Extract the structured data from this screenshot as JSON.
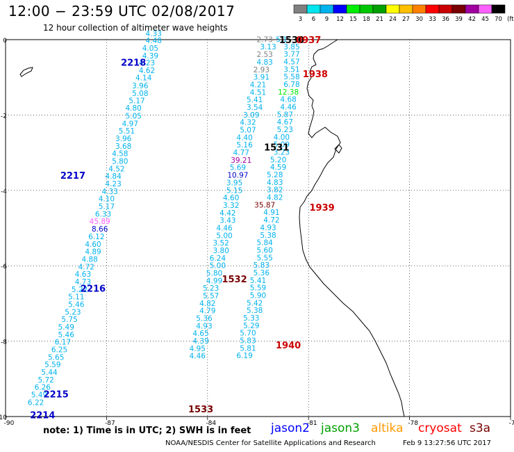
{
  "header": {
    "title": "12:00 − 23:59 UTC 02/08/2017",
    "subtitle": "12 hour collection of altimeter wave heights"
  },
  "colorbar": {
    "labels": [
      "3",
      "6",
      "9",
      "12",
      "15",
      "18",
      "21",
      "24",
      "27",
      "30",
      "33",
      "36",
      "39",
      "42",
      "45",
      "70",
      "(ft)"
    ],
    "colors": [
      "#808080",
      "#00e5ee",
      "#00b2ee",
      "#0000ff",
      "#00ee00",
      "#00c800",
      "#00a000",
      "#ffff00",
      "#ffc000",
      "#ff8000",
      "#ff0000",
      "#c80000",
      "#780000",
      "#a000a0",
      "#ff60ff",
      "#000000"
    ]
  },
  "axes": {
    "x_ticks": [
      "-90",
      "-87",
      "-84",
      "-81",
      "-78",
      "-75"
    ],
    "y_ticks": [
      "0",
      "-2",
      "-4",
      "-6",
      "-8",
      "-10"
    ]
  },
  "passes": [
    {
      "time": "2218",
      "lon": -86.2,
      "lat": -0.6,
      "color": "#0000c8"
    },
    {
      "time": "2217",
      "lon": -88.0,
      "lat": -3.6,
      "color": "#0000c8"
    },
    {
      "time": "2216",
      "lon": -87.4,
      "lat": -6.6,
      "color": "#0000c8"
    },
    {
      "time": "2215",
      "lon": -88.5,
      "lat": -9.4,
      "color": "#0000c8"
    },
    {
      "time": "2214",
      "lon": -88.9,
      "lat": -9.95,
      "color": "#0000c8"
    },
    {
      "time": "1530",
      "lon": -81.5,
      "lat": 0.0,
      "color": "#000000"
    },
    {
      "time": "0937",
      "lon": -81.0,
      "lat": 0.0,
      "color": "#cc0000"
    },
    {
      "time": "1938",
      "lon": -80.8,
      "lat": -0.9,
      "color": "#cc0000"
    },
    {
      "time": "1531",
      "lon": -81.95,
      "lat": -2.85,
      "color": "#000000"
    },
    {
      "time": "1939",
      "lon": -80.6,
      "lat": -4.45,
      "color": "#cc0000"
    },
    {
      "time": "1532",
      "lon": -83.2,
      "lat": -6.35,
      "color": "#780000"
    },
    {
      "time": "1940",
      "lon": -81.6,
      "lat": -8.1,
      "color": "#cc0000"
    },
    {
      "time": "1533",
      "lon": -84.2,
      "lat": -9.8,
      "color": "#780000"
    }
  ],
  "tracks": [
    {
      "color": "#00b2ee",
      "values": [
        {
          "lon": -85.6,
          "lat": 0.17,
          "v": "4.33"
        },
        {
          "lon": -85.6,
          "lat": -0.02,
          "v": "4.48"
        },
        {
          "lon": -85.7,
          "lat": -0.22,
          "v": "4.05"
        },
        {
          "lon": -85.7,
          "lat": -0.42,
          "v": "4.39"
        },
        {
          "lon": -85.8,
          "lat": -0.61,
          "v": "4.23"
        },
        {
          "lon": -85.8,
          "lat": -0.81,
          "v": "4.62"
        },
        {
          "lon": -85.9,
          "lat": -1.01,
          "v": "4.14"
        },
        {
          "lon": -86.0,
          "lat": -1.22,
          "v": "3.96"
        },
        {
          "lon": -86.0,
          "lat": -1.42,
          "v": "5.08"
        },
        {
          "lon": -86.1,
          "lat": -1.61,
          "v": "5.17"
        },
        {
          "lon": -86.2,
          "lat": -1.81,
          "v": "4.80"
        },
        {
          "lon": -86.2,
          "lat": -2.02,
          "v": "5.05"
        },
        {
          "lon": -86.3,
          "lat": -2.22,
          "v": "4.97"
        },
        {
          "lon": -86.4,
          "lat": -2.42,
          "v": "5.51"
        },
        {
          "lon": -86.5,
          "lat": -2.62,
          "v": "3.96"
        },
        {
          "lon": -86.5,
          "lat": -2.82,
          "v": "3.68"
        },
        {
          "lon": -86.6,
          "lat": -3.02,
          "v": "4.58"
        },
        {
          "lon": -86.6,
          "lat": -3.22,
          "v": "5.80"
        },
        {
          "lon": -86.7,
          "lat": -3.42,
          "v": "4.52"
        },
        {
          "lon": -86.8,
          "lat": -3.62,
          "v": "4.84"
        },
        {
          "lon": -86.8,
          "lat": -3.82,
          "v": "4.23"
        },
        {
          "lon": -86.9,
          "lat": -4.02,
          "v": "4.33"
        },
        {
          "lon": -87.0,
          "lat": -4.22,
          "v": "4.10"
        },
        {
          "lon": -87.0,
          "lat": -4.42,
          "v": "5.17"
        },
        {
          "lon": -87.1,
          "lat": -4.62,
          "v": "6.33"
        },
        {
          "lon": -87.2,
          "lat": -4.82,
          "v": "45.89",
          "c": "#ff60ff"
        },
        {
          "lon": -87.2,
          "lat": -5.02,
          "v": "8.66",
          "c": "#0000c8"
        },
        {
          "lon": -87.3,
          "lat": -5.22,
          "v": "6.12"
        },
        {
          "lon": -87.4,
          "lat": -5.42,
          "v": "4.60"
        },
        {
          "lon": -87.4,
          "lat": -5.62,
          "v": "4.89"
        },
        {
          "lon": -87.5,
          "lat": -5.82,
          "v": "4.88"
        },
        {
          "lon": -87.6,
          "lat": -6.02,
          "v": "4.72"
        },
        {
          "lon": -87.7,
          "lat": -6.22,
          "v": "4.63"
        },
        {
          "lon": -87.7,
          "lat": -6.42,
          "v": "4.73"
        },
        {
          "lon": -87.8,
          "lat": -6.62,
          "v": "5.22"
        },
        {
          "lon": -87.9,
          "lat": -6.82,
          "v": "5.11"
        },
        {
          "lon": -87.9,
          "lat": -7.02,
          "v": "5.46"
        },
        {
          "lon": -88.0,
          "lat": -7.22,
          "v": "5.23"
        },
        {
          "lon": -88.1,
          "lat": -7.42,
          "v": "5.75"
        },
        {
          "lon": -88.2,
          "lat": -7.62,
          "v": "5.49"
        },
        {
          "lon": -88.2,
          "lat": -7.82,
          "v": "5.46"
        },
        {
          "lon": -88.3,
          "lat": -8.02,
          "v": "6.17"
        },
        {
          "lon": -88.4,
          "lat": -8.22,
          "v": "6.25"
        },
        {
          "lon": -88.5,
          "lat": -8.42,
          "v": "5.65"
        },
        {
          "lon": -88.6,
          "lat": -8.62,
          "v": "5.59"
        },
        {
          "lon": -88.7,
          "lat": -8.82,
          "v": "5.44"
        },
        {
          "lon": -88.8,
          "lat": -9.02,
          "v": "5.72"
        },
        {
          "lon": -88.9,
          "lat": -9.22,
          "v": "6.26"
        },
        {
          "lon": -89.0,
          "lat": -9.42,
          "v": "5.49"
        },
        {
          "lon": -89.1,
          "lat": -9.62,
          "v": "6.22"
        }
      ]
    },
    {
      "color": "#00b2ee",
      "values": [
        {
          "lon": -82.3,
          "lat": 0.01,
          "v": "2.73",
          "c": "#808080"
        },
        {
          "lon": -82.2,
          "lat": -0.18,
          "v": "3.13"
        },
        {
          "lon": -82.3,
          "lat": -0.39,
          "v": "2.53",
          "c": "#808080"
        },
        {
          "lon": -82.3,
          "lat": -0.59,
          "v": "4.83"
        },
        {
          "lon": -82.4,
          "lat": -0.79,
          "v": "2.93",
          "c": "#808080"
        },
        {
          "lon": -82.4,
          "lat": -0.99,
          "v": "3.91"
        },
        {
          "lon": -82.5,
          "lat": -1.19,
          "v": "4.21"
        },
        {
          "lon": -82.5,
          "lat": -1.39,
          "v": "4.51"
        },
        {
          "lon": -82.6,
          "lat": -1.59,
          "v": "5.41"
        },
        {
          "lon": -82.6,
          "lat": -1.79,
          "v": "3.54"
        },
        {
          "lon": -82.7,
          "lat": -1.99,
          "v": "3.09"
        },
        {
          "lon": -82.8,
          "lat": -2.19,
          "v": "4.32"
        },
        {
          "lon": -82.8,
          "lat": -2.39,
          "v": "5.07"
        },
        {
          "lon": -82.9,
          "lat": -2.59,
          "v": "4.40"
        },
        {
          "lon": -82.9,
          "lat": -2.79,
          "v": "5.16"
        },
        {
          "lon": -83.0,
          "lat": -2.99,
          "v": "4.77"
        },
        {
          "lon": -83.0,
          "lat": -3.19,
          "v": "39.21",
          "c": "#a000a0"
        },
        {
          "lon": -83.1,
          "lat": -3.39,
          "v": "5.69"
        },
        {
          "lon": -83.1,
          "lat": -3.59,
          "v": "10.97",
          "c": "#0000c8"
        },
        {
          "lon": -83.2,
          "lat": -3.79,
          "v": "3.95"
        },
        {
          "lon": -83.2,
          "lat": -3.99,
          "v": "5.15"
        },
        {
          "lon": -83.3,
          "lat": -4.19,
          "v": "4.60"
        },
        {
          "lon": -83.3,
          "lat": -4.39,
          "v": "3.32"
        },
        {
          "lon": -83.4,
          "lat": -4.59,
          "v": "4.42"
        },
        {
          "lon": -83.4,
          "lat": -4.79,
          "v": "3.43"
        },
        {
          "lon": -83.5,
          "lat": -4.99,
          "v": "4.46"
        },
        {
          "lon": -83.5,
          "lat": -5.19,
          "v": "5.00"
        },
        {
          "lon": -83.6,
          "lat": -5.39,
          "v": "3.52"
        },
        {
          "lon": -83.6,
          "lat": -5.59,
          "v": "3.80"
        },
        {
          "lon": -83.7,
          "lat": -5.79,
          "v": "6.24"
        },
        {
          "lon": -83.7,
          "lat": -5.99,
          "v": "5.00"
        },
        {
          "lon": -83.8,
          "lat": -6.19,
          "v": "5.80"
        },
        {
          "lon": -83.8,
          "lat": -6.39,
          "v": "4.99"
        },
        {
          "lon": -83.9,
          "lat": -6.59,
          "v": "5.23"
        },
        {
          "lon": -83.9,
          "lat": -6.79,
          "v": "5.57"
        },
        {
          "lon": -84.0,
          "lat": -6.99,
          "v": "4.82"
        },
        {
          "lon": -84.0,
          "lat": -7.19,
          "v": "4.79"
        },
        {
          "lon": -84.1,
          "lat": -7.39,
          "v": "5.36"
        },
        {
          "lon": -84.1,
          "lat": -7.59,
          "v": "4.93"
        },
        {
          "lon": -84.2,
          "lat": -7.79,
          "v": "4.65"
        },
        {
          "lon": -84.2,
          "lat": -7.99,
          "v": "4.39"
        },
        {
          "lon": -84.3,
          "lat": -8.19,
          "v": "4.95"
        },
        {
          "lon": -84.3,
          "lat": -8.39,
          "v": "4.46"
        }
      ]
    },
    {
      "color": "#00b2ee",
      "values": [
        {
          "lon": -81.8,
          "lat": 0.01,
          "v": "5.1"
        },
        {
          "lon": -81.5,
          "lat": -0.18,
          "v": "3.85"
        },
        {
          "lon": -81.5,
          "lat": -0.38,
          "v": "3.77"
        },
        {
          "lon": -81.5,
          "lat": -0.58,
          "v": "4.57"
        },
        {
          "lon": -81.5,
          "lat": -0.78,
          "v": "3.51"
        },
        {
          "lon": -81.5,
          "lat": -0.98,
          "v": "5.58"
        },
        {
          "lon": -81.5,
          "lat": -1.18,
          "v": "6.78"
        },
        {
          "lon": -81.6,
          "lat": -1.38,
          "v": "12.38",
          "c": "#00ee00"
        },
        {
          "lon": -81.6,
          "lat": -1.58,
          "v": "4.68"
        },
        {
          "lon": -81.6,
          "lat": -1.78,
          "v": "4.46"
        },
        {
          "lon": -81.7,
          "lat": -1.98,
          "v": "5.87"
        },
        {
          "lon": -81.7,
          "lat": -2.18,
          "v": "4.67"
        },
        {
          "lon": -81.7,
          "lat": -2.38,
          "v": "5.23"
        },
        {
          "lon": -81.8,
          "lat": -2.58,
          "v": "4.00"
        },
        {
          "lon": -81.8,
          "lat": -2.78,
          "v": "5.09"
        },
        {
          "lon": -81.8,
          "lat": -2.98,
          "v": "3.23"
        },
        {
          "lon": -81.9,
          "lat": -3.18,
          "v": "5.20"
        },
        {
          "lon": -81.9,
          "lat": -3.38,
          "v": "4.59"
        },
        {
          "lon": -82.0,
          "lat": -3.58,
          "v": "5.28"
        },
        {
          "lon": -82.0,
          "lat": -3.78,
          "v": "4.83"
        },
        {
          "lon": -82.0,
          "lat": -3.98,
          "v": "3.82"
        },
        {
          "lon": -82.0,
          "lat": -4.18,
          "v": "4.82"
        },
        {
          "lon": -82.3,
          "lat": -4.38,
          "v": "35.87",
          "c": "#780000"
        },
        {
          "lon": -82.1,
          "lat": -4.58,
          "v": "4.91"
        },
        {
          "lon": -82.1,
          "lat": -4.78,
          "v": "4.72"
        },
        {
          "lon": -82.2,
          "lat": -4.98,
          "v": "4.93"
        },
        {
          "lon": -82.2,
          "lat": -5.18,
          "v": "5.38"
        },
        {
          "lon": -82.3,
          "lat": -5.38,
          "v": "5.84"
        },
        {
          "lon": -82.3,
          "lat": -5.58,
          "v": "5.60"
        },
        {
          "lon": -82.3,
          "lat": -5.78,
          "v": "5.55"
        },
        {
          "lon": -82.4,
          "lat": -5.98,
          "v": "5.83"
        },
        {
          "lon": -82.4,
          "lat": -6.18,
          "v": "5.36"
        },
        {
          "lon": -82.5,
          "lat": -6.38,
          "v": "5.41"
        },
        {
          "lon": -82.5,
          "lat": -6.58,
          "v": "5.59"
        },
        {
          "lon": -82.5,
          "lat": -6.78,
          "v": "5.90"
        },
        {
          "lon": -82.6,
          "lat": -6.98,
          "v": "5.42"
        },
        {
          "lon": -82.6,
          "lat": -7.18,
          "v": "5.38"
        },
        {
          "lon": -82.7,
          "lat": -7.38,
          "v": "5.33"
        },
        {
          "lon": -82.7,
          "lat": -7.58,
          "v": "5.29"
        },
        {
          "lon": -82.8,
          "lat": -7.78,
          "v": "5.70"
        },
        {
          "lon": -82.8,
          "lat": -7.98,
          "v": "5.83"
        },
        {
          "lon": -82.8,
          "lat": -8.18,
          "v": "5.81"
        },
        {
          "lon": -82.9,
          "lat": -8.38,
          "v": "6.19"
        }
      ]
    }
  ],
  "footer": {
    "note": "note:  1) Time is in UTC;  2) SWH is in feet",
    "satellites": [
      {
        "name": "jason2",
        "color": "#0000ff"
      },
      {
        "name": "jason3",
        "color": "#00a000"
      },
      {
        "name": "altika",
        "color": "#ff9900"
      },
      {
        "name": "cryosat",
        "color": "#ff0000"
      },
      {
        "name": "s3a",
        "color": "#780000"
      }
    ],
    "credit": "NOAA/NESDIS Center for Satellite Applications and Research",
    "created": "Feb  9 13:27:56 UTC 2017"
  }
}
